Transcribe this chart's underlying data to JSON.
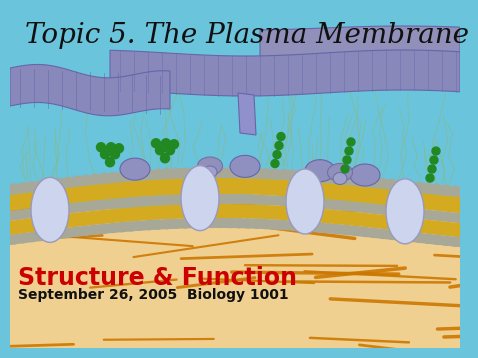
{
  "title": "Topic 5. The Plasma Membrane",
  "subtitle": "Structure & Function",
  "date_line": "September 26, 2005  Biology 1001",
  "title_fontsize": 20,
  "subtitle_fontsize": 17,
  "date_fontsize": 10,
  "title_color": "#111111",
  "subtitle_color": "#cc0000",
  "date_color": "#111111",
  "bg_sky": "#6ac4dc",
  "bg_tan": "#f0d090",
  "membrane_gray": "#a8a898",
  "membrane_yellow": "#d4aa20",
  "protein_lavender": "#9090c0",
  "protein_white": "#d0d8ee",
  "green_color": "#228822",
  "fiber_color": "#cc7700",
  "cilia_color": "#88bb88",
  "tube_color": "#8888bb",
  "tube_dark": "#6666aa"
}
